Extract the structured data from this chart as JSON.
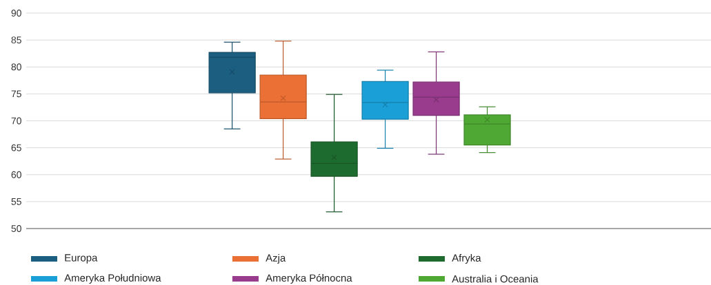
{
  "chart_data": {
    "type": "box",
    "categories": [
      null
    ],
    "series": [
      {
        "name": "Europa",
        "color": "#1b5e80",
        "boxes": [
          {
            "low": 68.5,
            "q1": 75.2,
            "median": 81.8,
            "q3": 82.7,
            "high": 84.6,
            "mean": 79.1
          }
        ]
      },
      {
        "name": "Azja",
        "color": "#ea7035",
        "boxes": [
          {
            "low": 62.9,
            "q1": 70.4,
            "median": 73.5,
            "q3": 78.5,
            "high": 84.8,
            "mean": 74.2
          }
        ]
      },
      {
        "name": "Afryka",
        "color": "#1e6b30",
        "boxes": [
          {
            "low": 53.1,
            "q1": 59.7,
            "median": 62.1,
            "q3": 66.1,
            "high": 74.9,
            "mean": 63.2
          }
        ]
      },
      {
        "name": "Ameryka Południowa",
        "color": "#1a9fd6",
        "boxes": [
          {
            "low": 64.9,
            "q1": 70.3,
            "median": 73.4,
            "q3": 77.3,
            "high": 79.4,
            "mean": 73.0
          }
        ]
      },
      {
        "name": "Ameryka Północna",
        "color": "#993c8e",
        "boxes": [
          {
            "low": 63.8,
            "q1": 71.0,
            "median": 74.4,
            "q3": 77.2,
            "high": 82.8,
            "mean": 73.9
          }
        ]
      },
      {
        "name": "Australia i Oceania",
        "color": "#4ea833",
        "boxes": [
          {
            "low": 64.1,
            "q1": 65.5,
            "median": 69.4,
            "q3": 71.1,
            "high": 72.6,
            "mean": 70.2
          }
        ]
      }
    ],
    "ylim": [
      50,
      90
    ],
    "yticks": [
      50,
      55,
      60,
      65,
      70,
      75,
      80,
      85,
      90
    ],
    "grid": "y",
    "legend": "bottom"
  }
}
